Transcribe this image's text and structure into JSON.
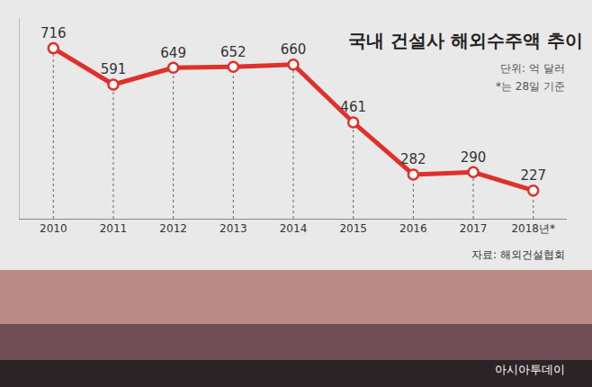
{
  "chart_data": {
    "type": "line",
    "title": "국내 건설사 해외수주액 추이",
    "subtitle": [
      "단위: 억 달러",
      "*는 28일 기준"
    ],
    "source": "자료: 해외건설협회",
    "watermark": "아시아투데이",
    "categories": [
      "2010",
      "2011",
      "2012",
      "2013",
      "2014",
      "2015",
      "2016",
      "2017",
      "2018년*"
    ],
    "values": [
      716,
      591,
      649,
      652,
      660,
      461,
      282,
      290,
      227
    ],
    "color": "#e0302a",
    "marker": "circle",
    "ylim": [
      130,
      820
    ],
    "yticks": [],
    "tick_labels": "x",
    "grid": false,
    "data_labels": true
  }
}
